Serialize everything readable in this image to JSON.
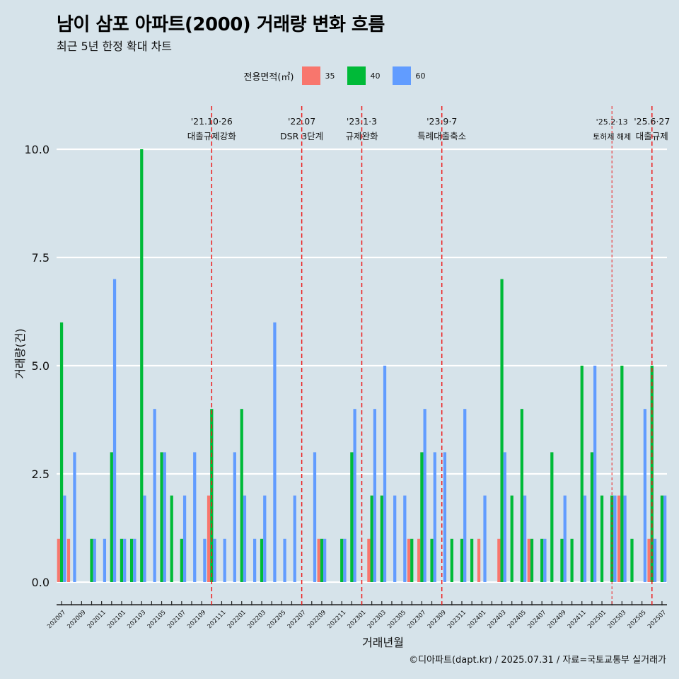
{
  "header": {
    "title": "남이 삼포 아파트(2000) 거래량 변화 흐름",
    "subtitle": "최근 5년 한정 확대 차트"
  },
  "legend": {
    "title": "전용면적(㎡)",
    "items": [
      {
        "label": "35",
        "color": "#F8766D"
      },
      {
        "label": "40",
        "color": "#00BA38"
      },
      {
        "label": "60",
        "color": "#619CFF"
      }
    ]
  },
  "caption": "©디아파트(dapt.kr) / 2025.07.31 / 자료=국토교통부 실거래가",
  "chart_data": {
    "type": "bar",
    "xlabel": "거래년월",
    "ylabel": "거래량(건)",
    "ylim": [
      0,
      10
    ],
    "yticks": [
      "0.0",
      "2.5",
      "5.0",
      "7.5",
      "10.0"
    ],
    "grid": true,
    "legend_position": "top",
    "categories": [
      "202007",
      "202008",
      "202009",
      "202010",
      "202011",
      "202012",
      "202101",
      "202102",
      "202103",
      "202104",
      "202105",
      "202106",
      "202107",
      "202108",
      "202109",
      "202110",
      "202111",
      "202112",
      "202201",
      "202202",
      "202203",
      "202204",
      "202205",
      "202206",
      "202207",
      "202208",
      "202209",
      "202210",
      "202211",
      "202212",
      "202301",
      "202302",
      "202303",
      "202304",
      "202305",
      "202306",
      "202307",
      "202308",
      "202309",
      "202310",
      "202311",
      "202312",
      "202401",
      "202402",
      "202403",
      "202404",
      "202405",
      "202406",
      "202407",
      "202408",
      "202409",
      "202410",
      "202411",
      "202412",
      "202501",
      "202502",
      "202503",
      "202504",
      "202505",
      "202506",
      "202507"
    ],
    "series": [
      {
        "name": "35",
        "color": "#F8766D",
        "values": [
          1,
          1,
          0,
          0,
          0,
          0,
          0,
          0,
          0,
          0,
          0,
          0,
          0,
          0,
          0,
          2,
          0,
          0,
          0,
          0,
          0,
          0,
          0,
          0,
          0,
          0,
          1,
          0,
          0,
          0,
          0,
          1,
          0,
          0,
          0,
          1,
          1,
          0,
          0,
          0,
          0,
          0,
          1,
          0,
          1,
          0,
          0,
          1,
          0,
          0,
          0,
          0,
          0,
          0,
          0,
          0,
          2,
          0,
          0,
          1,
          0
        ]
      },
      {
        "name": "40",
        "color": "#00BA38",
        "values": [
          6,
          0,
          0,
          1,
          0,
          3,
          1,
          1,
          10,
          0,
          3,
          2,
          1,
          0,
          0,
          4,
          0,
          0,
          4,
          0,
          1,
          0,
          0,
          0,
          0,
          0,
          1,
          0,
          1,
          3,
          0,
          2,
          2,
          0,
          0,
          1,
          3,
          1,
          0,
          1,
          1,
          1,
          0,
          0,
          7,
          2,
          4,
          1,
          1,
          3,
          1,
          1,
          5,
          3,
          2,
          2,
          5,
          1,
          0,
          5,
          2
        ]
      },
      {
        "name": "60",
        "color": "#619CFF",
        "values": [
          2,
          3,
          0,
          1,
          1,
          7,
          1,
          1,
          2,
          4,
          3,
          0,
          2,
          3,
          1,
          1,
          1,
          3,
          2,
          1,
          2,
          6,
          1,
          2,
          0,
          3,
          1,
          0,
          1,
          4,
          0,
          4,
          5,
          2,
          2,
          0,
          4,
          3,
          3,
          0,
          4,
          0,
          2,
          0,
          3,
          0,
          2,
          0,
          1,
          0,
          2,
          0,
          2,
          5,
          0,
          2,
          2,
          0,
          4,
          1,
          2
        ]
      }
    ],
    "annotations": [
      {
        "date": "'21.10·26",
        "label": "대출규제강화",
        "month": "202110",
        "style": "dashed"
      },
      {
        "date": "'22.07",
        "label": "DSR 3단계",
        "month": "202207",
        "style": "dashed"
      },
      {
        "date": "'23.1·3",
        "label": "규제완화",
        "month": "202301",
        "style": "dashed"
      },
      {
        "date": "'23.9·7",
        "label": "특례대출축소",
        "month": "202309",
        "style": "dashed"
      },
      {
        "date": "'25.2·13",
        "label": "토허제 해제",
        "month": "202502",
        "style": "dashed-fine"
      },
      {
        "date": "'25.6·27",
        "label": "대출규제",
        "month": "202506",
        "style": "dashed"
      }
    ]
  }
}
